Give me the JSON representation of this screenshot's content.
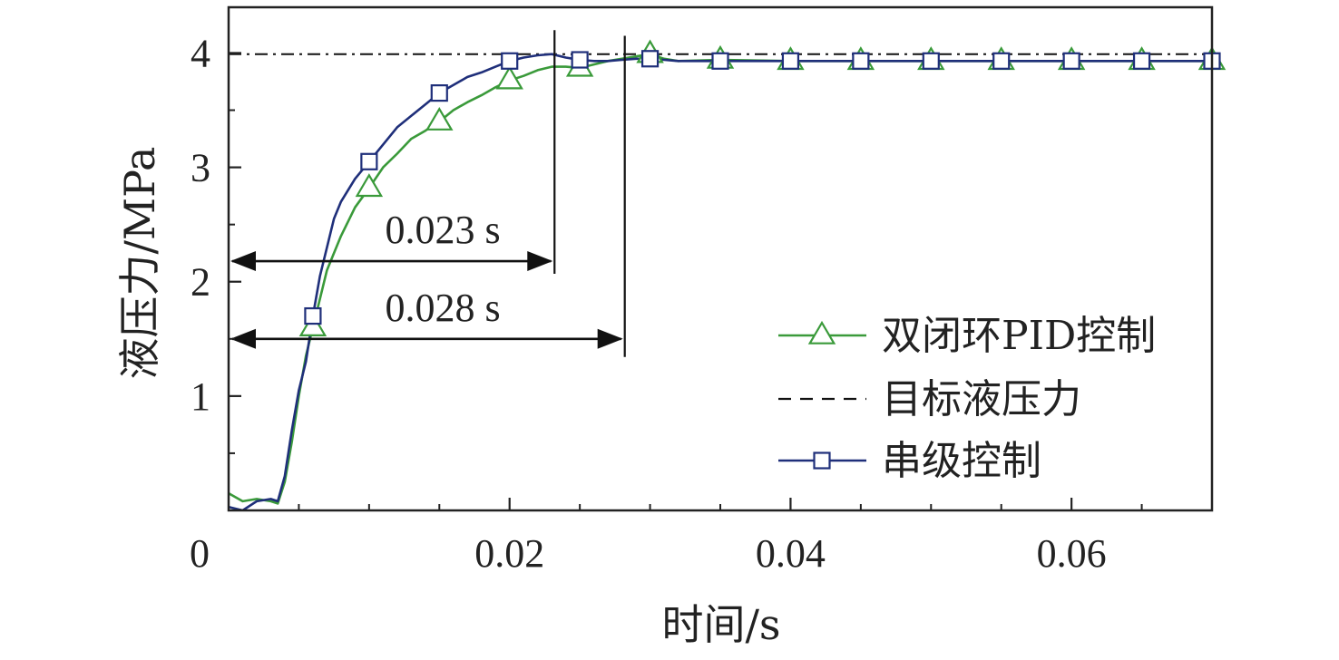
{
  "chart_data": {
    "type": "line",
    "title": "",
    "xlabel": "时间/s",
    "ylabel": "液压力/MPa",
    "xlim": [
      0,
      0.07
    ],
    "ylim": [
      0,
      4.4
    ],
    "x_ticks": [
      0,
      0.02,
      0.04,
      0.06
    ],
    "x_tick_labels": [
      "0",
      "0.02",
      "0.04",
      "0.06"
    ],
    "y_ticks": [
      1,
      2,
      3,
      4
    ],
    "y_tick_labels": [
      "1",
      "2",
      "3",
      "4"
    ],
    "grid": false,
    "legend_position": "bottom-right",
    "series": [
      {
        "name": "双闭环PID控制",
        "color": "#3a9a3a",
        "style": "solid",
        "marker": "triangle-open",
        "x": [
          0,
          0.001,
          0.002,
          0.003,
          0.0035,
          0.004,
          0.0045,
          0.005,
          0.0055,
          0.006,
          0.0065,
          0.007,
          0.0075,
          0.008,
          0.009,
          0.01,
          0.011,
          0.012,
          0.013,
          0.014,
          0.015,
          0.016,
          0.017,
          0.018,
          0.019,
          0.02,
          0.021,
          0.022,
          0.023,
          0.024,
          0.025,
          0.026,
          0.027,
          0.028,
          0.029,
          0.03,
          0.031,
          0.032,
          0.035,
          0.04,
          0.045,
          0.05,
          0.055,
          0.06,
          0.065,
          0.07
        ],
        "y": [
          0.15,
          0.08,
          0.1,
          0.08,
          0.06,
          0.25,
          0.6,
          1.0,
          1.35,
          1.6,
          1.85,
          2.1,
          2.25,
          2.4,
          2.65,
          2.82,
          3.0,
          3.12,
          3.25,
          3.32,
          3.4,
          3.5,
          3.57,
          3.63,
          3.7,
          3.76,
          3.8,
          3.85,
          3.88,
          3.88,
          3.87,
          3.9,
          3.93,
          3.95,
          3.97,
          3.99,
          3.95,
          3.93,
          3.94,
          3.93,
          3.93,
          3.93,
          3.93,
          3.93,
          3.93,
          3.93
        ],
        "marker_x": [
          0.006,
          0.01,
          0.015,
          0.02,
          0.025,
          0.03,
          0.035,
          0.04,
          0.045,
          0.05,
          0.055,
          0.06,
          0.065,
          0.07
        ]
      },
      {
        "name": "目标液压力",
        "color": "#111111",
        "style": "dash-dot",
        "marker": "none",
        "x": [
          0,
          0.07
        ],
        "y": [
          3.99,
          3.99
        ]
      },
      {
        "name": "串级控制",
        "color": "#1f2f7a",
        "style": "solid",
        "marker": "square-open",
        "x": [
          0,
          0.001,
          0.002,
          0.003,
          0.0035,
          0.004,
          0.0045,
          0.005,
          0.0055,
          0.006,
          0.0065,
          0.007,
          0.0075,
          0.008,
          0.009,
          0.01,
          0.011,
          0.012,
          0.013,
          0.014,
          0.015,
          0.016,
          0.017,
          0.018,
          0.019,
          0.02,
          0.021,
          0.022,
          0.023,
          0.024,
          0.025,
          0.026,
          0.027,
          0.028,
          0.029,
          0.03,
          0.031,
          0.032,
          0.035,
          0.04,
          0.045,
          0.05,
          0.055,
          0.06,
          0.065,
          0.07
        ],
        "y": [
          0.03,
          0.0,
          0.08,
          0.1,
          0.08,
          0.3,
          0.7,
          1.05,
          1.3,
          1.7,
          2.05,
          2.3,
          2.55,
          2.7,
          2.9,
          3.05,
          3.2,
          3.35,
          3.45,
          3.55,
          3.65,
          3.72,
          3.79,
          3.83,
          3.88,
          3.93,
          3.96,
          3.98,
          3.99,
          3.96,
          3.94,
          3.93,
          3.93,
          3.94,
          3.95,
          3.95,
          3.94,
          3.93,
          3.93,
          3.93,
          3.93,
          3.93,
          3.93,
          3.93,
          3.93,
          3.93
        ],
        "marker_x": [
          0.006,
          0.01,
          0.015,
          0.02,
          0.025,
          0.03,
          0.035,
          0.04,
          0.045,
          0.05,
          0.055,
          0.06,
          0.065,
          0.07
        ]
      }
    ],
    "annotations": [
      {
        "text": "0.023 s",
        "x_start": 0,
        "x_end": 0.0232,
        "y": 2.18,
        "vline_top_y": 4.2
      },
      {
        "text": "0.028 s",
        "x_start": 0,
        "x_end": 0.0282,
        "y": 1.5,
        "vline_top_y": 4.15
      }
    ]
  }
}
